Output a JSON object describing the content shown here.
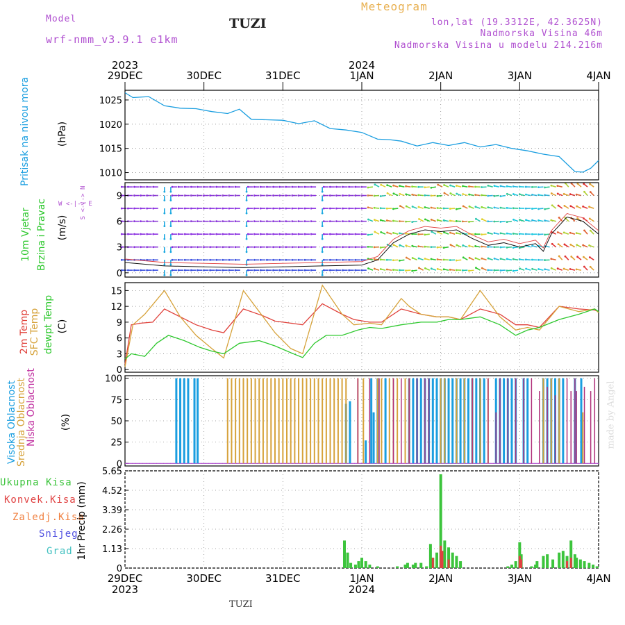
{
  "header": {
    "model_label": "Model",
    "model_name": "wrf-nmm_v3.9.1 e1km",
    "station": "TUZI",
    "meteogram_title": "Meteogram",
    "lonlat": "lon,lat (19.3312E, 42.3625N)",
    "altitude": "Nadmorska Visina 46m",
    "model_altitude": "Nadmorska Visina u modelu 214.216m",
    "footer_station": "TUZI",
    "credit": "made by Angel"
  },
  "colors": {
    "pressure": "#1a9ee0",
    "temp2m": "#e0403a",
    "sfc": "#d6a23a",
    "dewpt": "#2ec82e",
    "cloud_high": "#1a9ee0",
    "cloud_mid": "#d6a23a",
    "cloud_low": "#b0307a",
    "precip_total": "#3cc43c",
    "precip_conv": "#e04040",
    "label_purple": "#b050d0",
    "title_orange": "#e8b050"
  },
  "time_axis": {
    "top_years": [
      {
        "label": "2023",
        "day": 0
      },
      {
        "label": "2024",
        "day": 3
      }
    ],
    "ticks": [
      {
        "label": "29DEC",
        "day": 0
      },
      {
        "label": "30DEC",
        "day": 1
      },
      {
        "label": "31DEC",
        "day": 2
      },
      {
        "label": "1JAN",
        "day": 3
      },
      {
        "label": "2JAN",
        "day": 4
      },
      {
        "label": "3JAN",
        "day": 5
      },
      {
        "label": "4JAN",
        "day": 6
      }
    ],
    "bottom_years": [
      {
        "label": "2023",
        "day": 0
      },
      {
        "label": "2024",
        "day": 3
      }
    ]
  },
  "panels": {
    "pressure": {
      "label": "Pritisak na nivou mora",
      "unit": "(hPa)",
      "yticks": [
        "1010",
        "1015",
        "1020",
        "1025"
      ]
    },
    "wind": {
      "label1": "10m Vjetar",
      "label2": "Brzina i Pravac",
      "unit": "(m/s)",
      "compass": "W <-|-> E",
      "compass_ns": "S <-|-> N",
      "yticks": [
        "0",
        "3",
        "6",
        "9"
      ]
    },
    "temp": {
      "label1": "2m Temp",
      "label2": "SFC Temp",
      "label3": "dewpt Temp",
      "unit": "(C)",
      "yticks": [
        "0",
        "3",
        "6",
        "9",
        "12",
        "15"
      ]
    },
    "cloud": {
      "label1": "Visoka Oblacnost",
      "label2": "Srednja Oblacnost",
      "label3": "Niska Oblacnost",
      "unit": "(%)",
      "yticks": [
        "0",
        "25",
        "50",
        "75",
        "100"
      ]
    },
    "precip": {
      "legend": [
        "Ukupna Kisa",
        "Konvek.Kisa",
        "Zaledj.Kisa",
        "Snijeg",
        "Grad"
      ],
      "legend_colors": [
        "#3cc43c",
        "#e04040",
        "#f08040",
        "#5050e0",
        "#40c0c0"
      ],
      "unit": "1hr Precip (mm)",
      "yticks": [
        "0",
        "1.13",
        "2.26",
        "3.39",
        "4.52",
        "5.65"
      ]
    }
  },
  "chart_data": [
    {
      "type": "line",
      "title": "Pritisak na nivou mora",
      "ylabel": "(hPa)",
      "ylim": [
        1008.5,
        1027
      ],
      "x_days": [
        0,
        0.1,
        0.3,
        0.5,
        0.7,
        0.9,
        1.1,
        1.3,
        1.45,
        1.6,
        1.8,
        2.0,
        2.2,
        2.4,
        2.6,
        2.8,
        3.0,
        3.2,
        3.35,
        3.5,
        3.7,
        3.9,
        4.1,
        4.3,
        4.5,
        4.7,
        4.9,
        5.1,
        5.3,
        5.5,
        5.7,
        5.8,
        5.9,
        6.0
      ],
      "values": [
        1026.5,
        1025.5,
        1025.7,
        1023.8,
        1023.3,
        1023.2,
        1022.6,
        1022.2,
        1023.1,
        1021.0,
        1020.9,
        1020.8,
        1020.1,
        1020.7,
        1019.1,
        1018.8,
        1018.3,
        1016.9,
        1016.8,
        1016.5,
        1015.5,
        1016.2,
        1015.6,
        1016.2,
        1015.3,
        1015.8,
        1015.0,
        1014.5,
        1013.8,
        1013.3,
        1010.2,
        1010.1,
        1010.9,
        1012.5
      ]
    },
    {
      "type": "line",
      "title": "10m Vjetar Brzina i Pravac",
      "ylabel": "(m/s)",
      "ylim": [
        -0.5,
        10.5
      ],
      "x_days": [
        0,
        0.5,
        1.0,
        1.5,
        2.0,
        2.5,
        3.0,
        3.2,
        3.4,
        3.6,
        3.8,
        4.0,
        4.2,
        4.4,
        4.6,
        4.8,
        5.0,
        5.2,
        5.3,
        5.4,
        5.6,
        5.8,
        6.0
      ],
      "values": [
        1.2,
        0.8,
        0.7,
        0.6,
        0.7,
        0.8,
        0.9,
        1.5,
        3.5,
        4.5,
        5.0,
        4.8,
        5.0,
        4.0,
        3.2,
        3.5,
        3.0,
        3.4,
        2.5,
        4.5,
        6.5,
        6.0,
        4.5
      ]
    },
    {
      "type": "line",
      "title": "2m Temp / SFC Temp / dewpt Temp",
      "ylabel": "(C)",
      "ylim": [
        -0.5,
        16.5
      ],
      "series": [
        {
          "name": "2m Temp",
          "x_days": [
            0,
            0.08,
            0.2,
            0.35,
            0.5,
            0.7,
            0.9,
            1.1,
            1.25,
            1.5,
            1.75,
            1.9,
            2.1,
            2.25,
            2.5,
            2.75,
            2.9,
            3.1,
            3.25,
            3.5,
            3.75,
            3.95,
            4.1,
            4.25,
            4.5,
            4.75,
            4.95,
            5.1,
            5.25,
            5.5,
            5.75,
            5.95,
            6.0
          ],
          "values": [
            1.0,
            8.5,
            8.8,
            9.0,
            11.5,
            10.0,
            8.5,
            7.5,
            7.0,
            11.5,
            10.2,
            9.2,
            8.8,
            8.5,
            12.5,
            10.5,
            9.5,
            9.0,
            9.0,
            11.5,
            10.5,
            10.0,
            10.0,
            9.5,
            11.5,
            10.5,
            8.5,
            8.5,
            8.0,
            12.0,
            11.5,
            11.3,
            11.0
          ]
        },
        {
          "name": "SFC Temp",
          "x_days": [
            0,
            0.1,
            0.25,
            0.5,
            0.7,
            0.9,
            1.1,
            1.25,
            1.5,
            1.75,
            1.9,
            2.1,
            2.25,
            2.5,
            2.75,
            2.9,
            3.1,
            3.25,
            3.5,
            3.6,
            3.75,
            3.95,
            4.1,
            4.25,
            4.5,
            4.75,
            4.95,
            5.1,
            5.25,
            5.5,
            5.75,
            5.95,
            6.0
          ],
          "values": [
            0.5,
            8.5,
            10.5,
            15.0,
            10.0,
            6.5,
            4.0,
            2.2,
            15.0,
            10.0,
            7.0,
            4.0,
            3.0,
            16.0,
            10.5,
            8.5,
            8.8,
            8.5,
            13.5,
            12.0,
            10.5,
            10.0,
            10.0,
            9.5,
            15.0,
            10.0,
            7.5,
            8.0,
            7.5,
            12.0,
            11.0,
            11.5,
            10.8
          ]
        },
        {
          "name": "dewpt Temp",
          "x_days": [
            0,
            0.08,
            0.25,
            0.4,
            0.55,
            0.75,
            0.95,
            1.1,
            1.25,
            1.45,
            1.7,
            1.9,
            2.1,
            2.25,
            2.4,
            2.55,
            2.75,
            2.95,
            3.1,
            3.25,
            3.5,
            3.75,
            3.95,
            4.1,
            4.25,
            4.5,
            4.75,
            4.95,
            5.1,
            5.25,
            5.5,
            5.75,
            5.95,
            6.0
          ],
          "values": [
            2.0,
            3.0,
            2.5,
            5.0,
            6.5,
            5.5,
            4.2,
            3.5,
            3.0,
            5.0,
            5.5,
            4.5,
            3.2,
            2.3,
            5.0,
            6.5,
            6.5,
            7.5,
            8.0,
            7.8,
            8.5,
            9.0,
            9.0,
            9.5,
            9.5,
            10.0,
            8.5,
            6.5,
            7.5,
            8.0,
            9.5,
            10.5,
            11.5,
            11.0
          ]
        }
      ]
    },
    {
      "type": "bar",
      "title": "Oblacnost",
      "ylabel": "(%)",
      "ylim": [
        0,
        100
      ],
      "series": [
        {
          "name": "Visoka Oblacnost",
          "x_days": [
            0.65,
            0.7,
            0.75,
            0.8,
            0.88,
            0.92,
            2.8,
            2.85,
            3.05,
            3.12,
            3.15,
            3.2,
            3.3,
            3.6,
            3.65,
            3.7,
            3.75,
            3.8,
            3.85,
            3.9,
            3.95,
            4.0,
            4.05,
            4.1,
            4.15,
            4.2,
            4.25,
            4.3,
            4.35,
            4.4,
            4.45,
            4.5,
            4.55,
            4.7,
            4.75,
            4.8,
            4.85,
            4.9,
            4.95,
            5.05,
            5.1,
            5.3,
            5.35,
            5.4,
            5.45,
            5.5,
            5.55,
            5.7,
            5.78
          ],
          "values": [
            100,
            100,
            100,
            100,
            100,
            100,
            70,
            73,
            27,
            100,
            60,
            100,
            100,
            100,
            100,
            100,
            100,
            100,
            100,
            100,
            100,
            100,
            100,
            100,
            100,
            100,
            100,
            100,
            100,
            100,
            100,
            100,
            100,
            100,
            100,
            100,
            100,
            100,
            100,
            100,
            100,
            100,
            100,
            100,
            100,
            100,
            100,
            100,
            100
          ]
        },
        {
          "name": "Srednja Oblacnost",
          "x_days": [
            1.3,
            1.35,
            1.4,
            1.45,
            1.5,
            1.55,
            1.6,
            1.65,
            1.7,
            1.75,
            1.8,
            1.85,
            1.9,
            1.95,
            2.0,
            2.05,
            2.1,
            2.15,
            2.2,
            2.25,
            2.3,
            2.35,
            2.4,
            2.45,
            2.5,
            2.55,
            2.6,
            2.65,
            2.7,
            2.75,
            2.8,
            2.95,
            3.02,
            3.2,
            3.25,
            3.35,
            3.4,
            3.45,
            3.55,
            3.6,
            4.0,
            4.05,
            4.2,
            4.3,
            4.4,
            4.5,
            4.6,
            5.3,
            5.4,
            5.5,
            5.8
          ],
          "values": [
            100,
            100,
            100,
            100,
            100,
            100,
            100,
            100,
            100,
            100,
            100,
            100,
            100,
            100,
            100,
            100,
            100,
            100,
            100,
            100,
            100,
            100,
            100,
            100,
            100,
            100,
            100,
            100,
            100,
            100,
            100,
            100,
            100,
            100,
            100,
            100,
            100,
            100,
            100,
            100,
            100,
            100,
            100,
            100,
            100,
            100,
            100,
            100,
            100,
            100,
            60
          ]
        },
        {
          "name": "Niska Oblacnost",
          "x_days": [
            2.95,
            3.1,
            3.22,
            3.4,
            3.5,
            3.6,
            3.7,
            3.8,
            3.85,
            4.4,
            4.6,
            4.7,
            4.75,
            4.85,
            4.95,
            5.05,
            5.15,
            5.25,
            5.35,
            5.45,
            5.6,
            5.65,
            5.7,
            5.72,
            5.82,
            5.9,
            5.95
          ],
          "values": [
            100,
            100,
            100,
            100,
            100,
            100,
            100,
            100,
            100,
            100,
            100,
            60,
            100,
            100,
            100,
            100,
            100,
            85,
            90,
            80,
            100,
            85,
            100,
            85,
            90,
            85,
            100
          ]
        }
      ]
    },
    {
      "type": "bar",
      "title": "1hr Precip",
      "ylabel": "1hr Precip (mm)",
      "ylim": [
        0,
        5.65
      ],
      "series": [
        {
          "name": "Ukupna Kisa",
          "x_days": [
            2.78,
            2.82,
            2.86,
            2.92,
            2.96,
            3.0,
            3.05,
            3.1,
            3.2,
            3.45,
            3.55,
            3.58,
            3.65,
            3.68,
            3.75,
            3.82,
            3.87,
            3.9,
            3.95,
            4.0,
            4.05,
            4.1,
            4.15,
            4.2,
            4.25,
            4.85,
            4.9,
            4.95,
            5.0,
            5.02,
            5.15,
            5.2,
            5.22,
            5.3,
            5.35,
            5.42,
            5.5,
            5.55,
            5.6,
            5.65,
            5.7,
            5.72,
            5.77,
            5.82,
            5.88,
            5.93,
            5.98
          ],
          "values": [
            1.6,
            0.9,
            0.3,
            0.2,
            0.4,
            0.6,
            0.4,
            0.2,
            0.1,
            0.1,
            0.2,
            0.3,
            0.2,
            0.3,
            0.3,
            0.1,
            1.4,
            0.6,
            0.9,
            5.45,
            1.6,
            1.2,
            0.9,
            0.7,
            0.4,
            0.1,
            0.2,
            0.4,
            1.5,
            0.8,
            0.1,
            0.2,
            0.4,
            0.7,
            0.8,
            0.5,
            0.9,
            1.0,
            0.7,
            1.6,
            0.8,
            0.6,
            0.5,
            0.4,
            0.3,
            0.2,
            0.1
          ]
        },
        {
          "name": "Konvek.Kisa",
          "x_days": [
            3.9,
            4.0,
            4.02,
            4.1,
            5.0,
            5.02,
            5.6,
            5.65
          ],
          "values": [
            0.6,
            1.3,
            1.0,
            0.5,
            0.7,
            0.5,
            0.4,
            0.6
          ]
        }
      ]
    }
  ]
}
